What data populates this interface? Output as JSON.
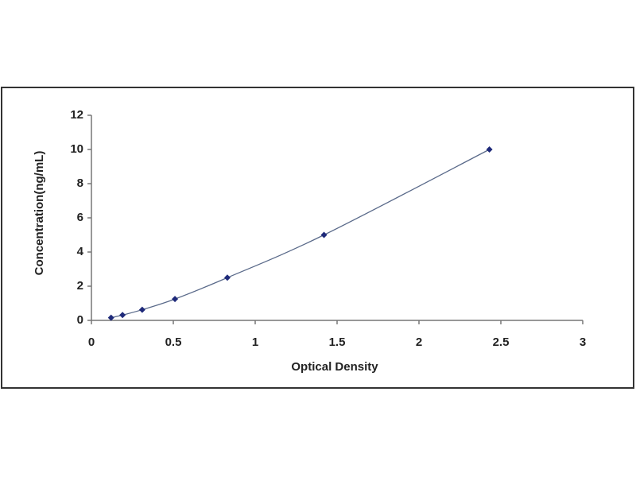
{
  "chart_data": {
    "type": "line",
    "x_label": "Optical Density",
    "y_label": "Concentration(ng/mL)",
    "x": [
      0.12,
      0.19,
      0.31,
      0.51,
      0.83,
      1.42,
      2.43
    ],
    "series": [
      {
        "color": "#1f2a7a",
        "line_color": "#5a6a8a",
        "values": [
          0.156,
          0.312,
          0.625,
          1.25,
          2.5,
          5,
          10
        ]
      }
    ],
    "xlim": [
      0,
      3
    ],
    "xticks": [
      0,
      0.5,
      1,
      1.5,
      2,
      2.5,
      3
    ],
    "ylim": [
      0,
      12
    ],
    "yticks": [
      0,
      2,
      4,
      6,
      8,
      10,
      12
    ],
    "grid": false
  }
}
